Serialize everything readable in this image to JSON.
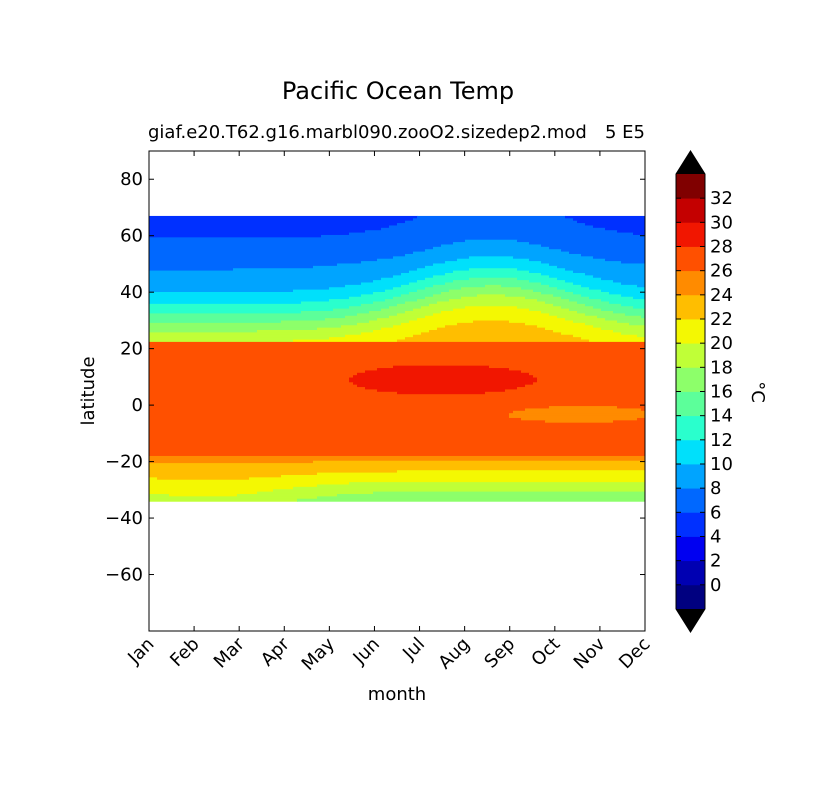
{
  "chart_data": {
    "type": "heatmap",
    "title": "Pacific Ocean Temp",
    "subtitle": "giaf.e20.T62.g16.marbl090.zooO2.sizedep2.mod",
    "subtitle_right": "5 E5",
    "xlabel": "month",
    "ylabel": "latitude",
    "x_ticks": [
      "Jan",
      "Feb",
      "Mar",
      "Apr",
      "May",
      "Jun",
      "Jul",
      "Aug",
      "Sep",
      "Oct",
      "Nov",
      "Dec"
    ],
    "xlim": [
      0,
      11
    ],
    "ylim": [
      -80,
      90
    ],
    "y_ticks": [
      80,
      60,
      40,
      20,
      0,
      -20,
      -40,
      -60
    ],
    "data_extent": {
      "lat_min": -34,
      "lat_max": 67
    },
    "colorbar": {
      "label": "°C",
      "levels": [
        -2,
        0,
        2,
        4,
        6,
        8,
        10,
        12,
        14,
        16,
        18,
        20,
        22,
        24,
        26,
        28,
        30,
        32,
        34
      ],
      "tick_labels": [
        "0",
        "2",
        "4",
        "6",
        "8",
        "10",
        "12",
        "14",
        "16",
        "18",
        "20",
        "22",
        "24",
        "26",
        "28",
        "30",
        "32"
      ],
      "tick_values": [
        0,
        2,
        4,
        6,
        8,
        10,
        12,
        14,
        16,
        18,
        20,
        22,
        24,
        26,
        28,
        30,
        32
      ],
      "colors": [
        "#000080",
        "#0000b2",
        "#0000f1",
        "#0030ff",
        "#0068ff",
        "#00a4ff",
        "#00e0fb",
        "#2affcd",
        "#5cff9a",
        "#8dff6a",
        "#c0ff37",
        "#f4f802",
        "#ffbe00",
        "#ff8b00",
        "#ff5000",
        "#f11600",
        "#c40000",
        "#800000"
      ],
      "extend": "both",
      "under_color": "#000000",
      "over_color": "#000000"
    },
    "grid": false
  }
}
